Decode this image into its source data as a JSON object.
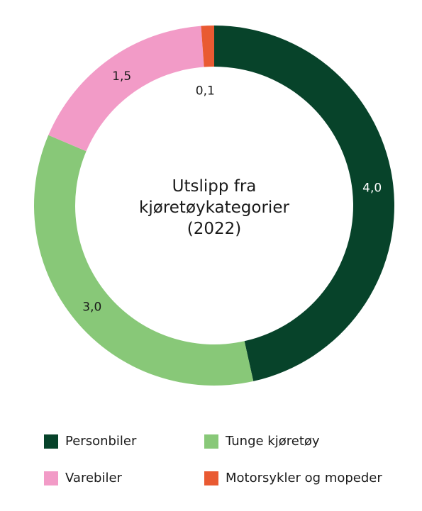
{
  "chart_data": {
    "type": "pie",
    "title_lines": [
      "Utslipp fra",
      "kjøretøykategorier",
      "(2022)"
    ],
    "categories": [
      "Personbiler",
      "Tunge kjøretøy",
      "Varebiler",
      "Motorsykler og mopeder"
    ],
    "values": [
      4.0,
      3.0,
      1.5,
      0.1
    ],
    "value_labels": [
      "4,0",
      "3,0",
      "1,5",
      "0,1"
    ],
    "colors": [
      "#07432A",
      "#88C878",
      "#F29BC7",
      "#E95A32"
    ],
    "label_colors": [
      "#ffffff",
      "#1a1a1a",
      "#1a1a1a",
      "#1a1a1a"
    ],
    "donut": true,
    "legend_position": "bottom"
  }
}
